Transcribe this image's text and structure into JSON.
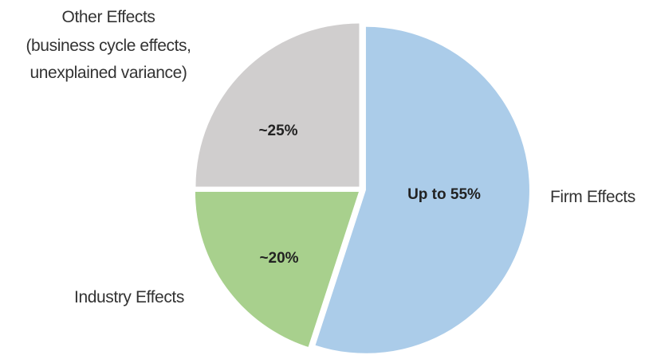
{
  "chart_data": {
    "type": "pie",
    "title": "",
    "slices": [
      {
        "category": "Firm Effects",
        "value": 55,
        "data_label": "Up to 55%",
        "color": "#abcce9"
      },
      {
        "category": "Industry Effects",
        "value": 20,
        "data_label": "~20%",
        "color": "#a8d08d"
      },
      {
        "category": "Other Effects",
        "category_note_line1": "(business cycle effects,",
        "category_note_line2": "unexplained variance)",
        "value": 25,
        "data_label": "~25%",
        "color": "#d0cece"
      }
    ],
    "legend": "none"
  }
}
